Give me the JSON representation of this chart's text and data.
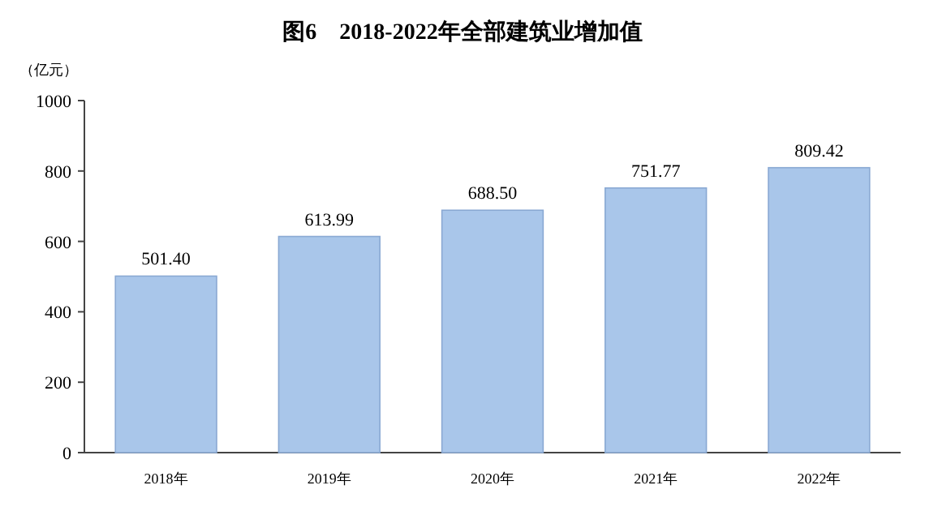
{
  "chart_data": {
    "type": "bar",
    "title": "图6　2018-2022年全部建筑业增加值",
    "ylabel": "（亿元）",
    "categories": [
      "2018年",
      "2019年",
      "2020年",
      "2021年",
      "2022年"
    ],
    "values": [
      501.4,
      613.99,
      688.5,
      751.77,
      809.42
    ],
    "value_labels": [
      "501.40",
      "613.99",
      "688.50",
      "751.77",
      "809.42"
    ],
    "color": "#a9c6ea",
    "ylim": [
      0,
      1000
    ],
    "yticks": [
      0,
      200,
      400,
      600,
      800,
      1000
    ]
  }
}
